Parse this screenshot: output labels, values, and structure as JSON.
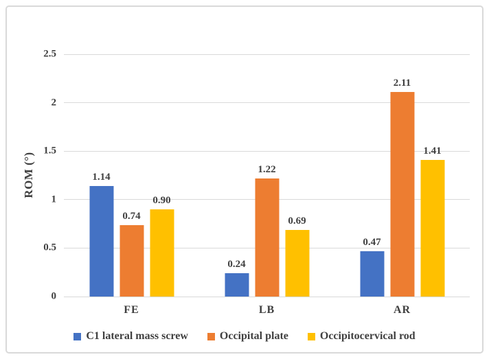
{
  "figure": {
    "background_color": "#ffffff",
    "border_color": "#d9d9d9",
    "text_color": "#404040",
    "gridline_color": "#d9d9d9"
  },
  "chart_data": {
    "type": "bar",
    "title": "",
    "xlabel": "",
    "ylabel": "ROM (°)",
    "ylim": [
      0,
      2.5
    ],
    "yticks": [
      0,
      0.5,
      1,
      1.5,
      2,
      2.5
    ],
    "grid": true,
    "legend_position": "bottom",
    "categories": [
      "FE",
      "LB",
      "AR"
    ],
    "series": [
      {
        "name": "C1 lateral mass screw",
        "color": "#4472C4",
        "values": [
          1.14,
          0.24,
          0.47
        ]
      },
      {
        "name": "Occipital plate",
        "color": "#ED7D31",
        "values": [
          0.74,
          1.22,
          2.11
        ]
      },
      {
        "name": "Occipitocervical rod",
        "color": "#FFC000",
        "values": [
          0.9,
          0.69,
          1.41
        ]
      }
    ],
    "data_labels": {
      "FE": [
        "1.14",
        "0.74",
        "0.90"
      ],
      "LB": [
        "0.24",
        "1.22",
        "0.69"
      ],
      "AR": [
        "0.47",
        "2.11",
        "1.41"
      ]
    }
  }
}
